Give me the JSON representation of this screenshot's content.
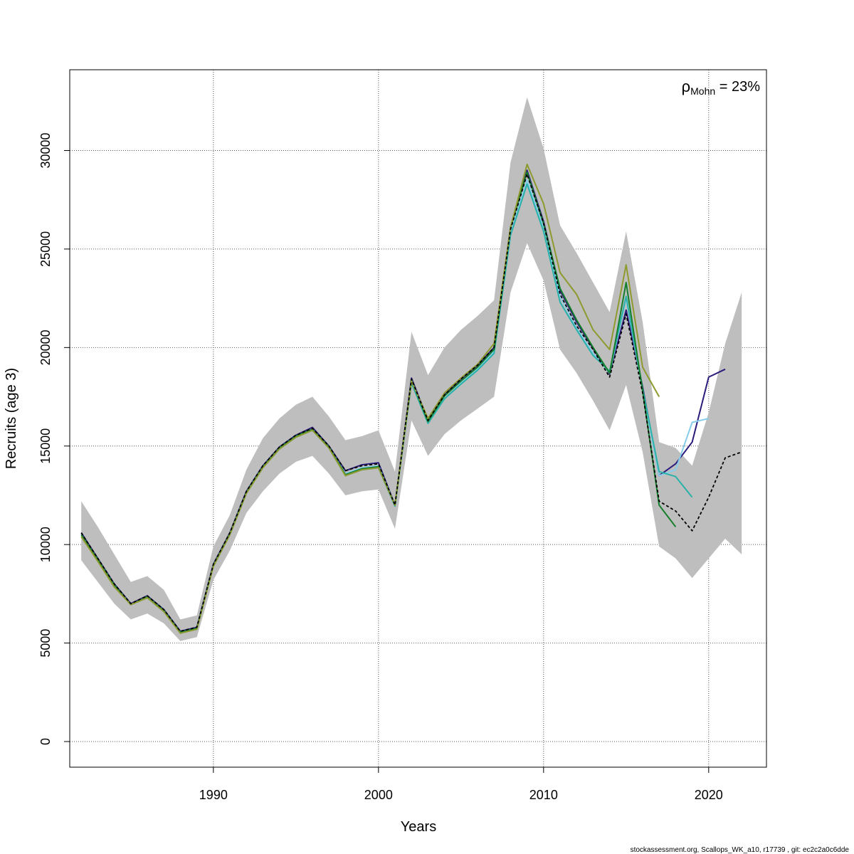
{
  "chart_data": {
    "type": "line",
    "title": "",
    "xlabel": "Years",
    "ylabel": "Recruits (age 3)",
    "xlim": [
      1981.3,
      2023.5
    ],
    "ylim": [
      -1300,
      34100
    ],
    "x_ticks": [
      1990,
      2000,
      2010,
      2020
    ],
    "x_tick_labels": [
      "1990",
      "2000",
      "2010",
      "2020"
    ],
    "y_ticks": [
      0,
      5000,
      10000,
      15000,
      20000,
      25000,
      30000
    ],
    "y_tick_labels": [
      "0",
      "5000",
      "10000",
      "15000",
      "20000",
      "25000",
      "30000"
    ],
    "grid": true,
    "annotation": {
      "symbol": "ρ",
      "subscript": "Mohn",
      "text": " = 23%"
    },
    "footer": "stockassessment.org, Scallops_WK_a10, r17739 , git: ec2c2a0c6dde",
    "confidence_band": {
      "color": "#bebebe",
      "x": [
        1982,
        1983,
        1984,
        1985,
        1986,
        1987,
        1988,
        1989,
        1990,
        1991,
        1992,
        1993,
        1994,
        1995,
        1996,
        1997,
        1998,
        1999,
        2000,
        2001,
        2002,
        2003,
        2004,
        2005,
        2006,
        2007,
        2008,
        2009,
        2010,
        2011,
        2012,
        2013,
        2014,
        2015,
        2016,
        2017,
        2018,
        2019,
        2020,
        2021,
        2022
      ],
      "upper": [
        12200,
        10900,
        9500,
        8100,
        8400,
        7700,
        6200,
        6400,
        9900,
        11500,
        13800,
        15400,
        16400,
        17100,
        17500,
        16500,
        15300,
        15500,
        15800,
        13700,
        20800,
        18600,
        20000,
        20900,
        21600,
        22400,
        29400,
        32700,
        30100,
        26200,
        24800,
        23300,
        21800,
        25900,
        21300,
        15200,
        14900,
        14000,
        16700,
        20200,
        22800
      ],
      "lower": [
        9200,
        8100,
        7000,
        6200,
        6500,
        6000,
        5100,
        5300,
        8200,
        9700,
        11600,
        12700,
        13600,
        14200,
        14500,
        13600,
        12500,
        12700,
        12800,
        10800,
        16300,
        14500,
        15600,
        16300,
        16900,
        17500,
        22800,
        25300,
        23400,
        19900,
        18700,
        17300,
        15800,
        18100,
        14700,
        9900,
        9300,
        8300,
        9300,
        10300,
        9500
      ]
    },
    "series": [
      {
        "color": "#000000",
        "dashed": true,
        "x": [
          1982,
          1983,
          1984,
          1985,
          1986,
          1987,
          1988,
          1989,
          1990,
          1991,
          1992,
          1993,
          1994,
          1995,
          1996,
          1997,
          1998,
          1999,
          2000,
          2001,
          2002,
          2003,
          2004,
          2005,
          2006,
          2007,
          2008,
          2009,
          2010,
          2011,
          2012,
          2013,
          2014,
          2015,
          2016,
          2017,
          2018,
          2019,
          2020,
          2021,
          2022
        ],
        "values": [
          10600,
          9300,
          8000,
          7000,
          7400,
          6700,
          5600,
          5800,
          9000,
          10600,
          12700,
          14000,
          14950,
          15550,
          15900,
          15000,
          13750,
          14000,
          14100,
          12000,
          18400,
          16300,
          17600,
          18400,
          19100,
          20000,
          26000,
          28800,
          26300,
          22700,
          21100,
          19900,
          18500,
          21700,
          17700,
          12200,
          11700,
          10700,
          12400,
          14400,
          14700
        ]
      },
      {
        "color": "#2c1b7b",
        "dashed": false,
        "x": [
          1982,
          1983,
          1984,
          1985,
          1986,
          1987,
          1988,
          1989,
          1990,
          1991,
          1992,
          1993,
          1994,
          1995,
          1996,
          1997,
          1998,
          1999,
          2000,
          2001,
          2002,
          2003,
          2004,
          2005,
          2006,
          2007,
          2008,
          2009,
          2010,
          2011,
          2012,
          2013,
          2014,
          2015,
          2016,
          2017,
          2018,
          2019,
          2020,
          2021
        ],
        "values": [
          10600,
          9300,
          8000,
          7000,
          7400,
          6700,
          5600,
          5800,
          9000,
          10600,
          12700,
          14000,
          14950,
          15550,
          15950,
          15000,
          13750,
          14050,
          14150,
          12000,
          18450,
          16300,
          17600,
          18400,
          19100,
          20000,
          26100,
          29000,
          26400,
          22900,
          21300,
          19950,
          18650,
          21900,
          18000,
          13500,
          14100,
          15200,
          18500,
          18900
        ]
      },
      {
        "color": "#87ceeb",
        "dashed": false,
        "x": [
          1982,
          1983,
          1984,
          1985,
          1986,
          1987,
          1988,
          1989,
          1990,
          1991,
          1992,
          1993,
          1994,
          1995,
          1996,
          1997,
          1998,
          1999,
          2000,
          2001,
          2002,
          2003,
          2004,
          2005,
          2006,
          2007,
          2008,
          2009,
          2010,
          2011,
          2012,
          2013,
          2014,
          2015,
          2016,
          2017,
          2018,
          2019,
          2020
        ],
        "values": [
          10500,
          9250,
          7950,
          6950,
          7350,
          6650,
          5550,
          5750,
          8950,
          10550,
          12650,
          13950,
          14900,
          15500,
          15850,
          14950,
          13600,
          13900,
          14000,
          12000,
          18300,
          16200,
          17400,
          18200,
          18900,
          19800,
          25800,
          28500,
          26100,
          22600,
          21000,
          19700,
          18700,
          22500,
          17800,
          13500,
          13800,
          16200,
          16400
        ]
      },
      {
        "color": "#2ab1a8",
        "dashed": false,
        "x": [
          1982,
          1983,
          1984,
          1985,
          1986,
          1987,
          1988,
          1989,
          1990,
          1991,
          1992,
          1993,
          1994,
          1995,
          1996,
          1997,
          1998,
          1999,
          2000,
          2001,
          2002,
          2003,
          2004,
          2005,
          2006,
          2007,
          2008,
          2009,
          2010,
          2011,
          2012,
          2013,
          2014,
          2015,
          2016,
          2017,
          2018,
          2019
        ],
        "values": [
          10400,
          9200,
          7900,
          6950,
          7300,
          6600,
          5550,
          5700,
          8900,
          10500,
          12600,
          13900,
          14850,
          15450,
          15800,
          14900,
          13500,
          13800,
          13900,
          11950,
          18200,
          16150,
          17400,
          18150,
          18850,
          19700,
          25700,
          28300,
          25900,
          22300,
          20900,
          19600,
          18800,
          22600,
          17900,
          13700,
          13450,
          12400
        ]
      },
      {
        "color": "#127e2a",
        "dashed": false,
        "x": [
          1982,
          1983,
          1984,
          1985,
          1986,
          1987,
          1988,
          1989,
          1990,
          1991,
          1992,
          1993,
          1994,
          1995,
          1996,
          1997,
          1998,
          1999,
          2000,
          2001,
          2002,
          2003,
          2004,
          2005,
          2006,
          2007,
          2008,
          2009,
          2010,
          2011,
          2012,
          2013,
          2014,
          2015,
          2016,
          2017,
          2018
        ],
        "values": [
          10500,
          9250,
          7950,
          6950,
          7350,
          6650,
          5550,
          5750,
          8950,
          10550,
          12650,
          13950,
          14900,
          15500,
          15850,
          14950,
          13550,
          13850,
          13950,
          12000,
          18350,
          16250,
          17550,
          18300,
          19000,
          19900,
          26100,
          28900,
          26300,
          23000,
          21400,
          20000,
          18700,
          23300,
          17800,
          12000,
          10900
        ]
      },
      {
        "color": "#8e9a2e",
        "dashed": false,
        "x": [
          1982,
          1983,
          1984,
          1985,
          1986,
          1987,
          1988,
          1989,
          1990,
          1991,
          1992,
          1993,
          1994,
          1995,
          1996,
          1997,
          1998,
          1999,
          2000,
          2001,
          2002,
          2003,
          2004,
          2005,
          2006,
          2007,
          2008,
          2009,
          2010,
          2011,
          2012,
          2013,
          2014,
          2015,
          2016,
          2017
        ],
        "values": [
          10400,
          9150,
          7850,
          6950,
          7300,
          6600,
          5500,
          5700,
          8900,
          10500,
          12600,
          13900,
          14850,
          15450,
          15800,
          14900,
          13500,
          13800,
          13900,
          12000,
          18300,
          16400,
          17700,
          18450,
          19150,
          20200,
          26100,
          29300,
          27300,
          23800,
          22700,
          20900,
          19900,
          24200,
          19000,
          17500
        ]
      }
    ]
  }
}
